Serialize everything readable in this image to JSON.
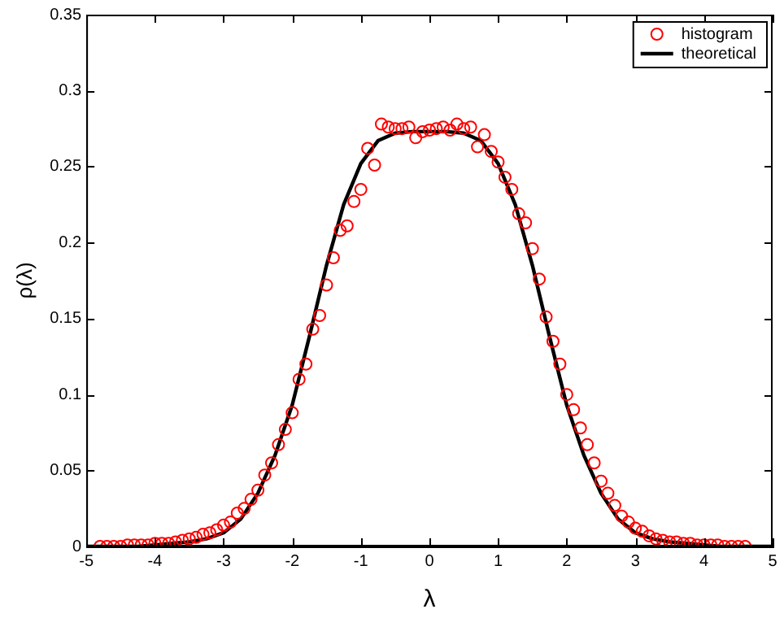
{
  "chart_data": {
    "type": "scatter",
    "xlabel": "λ",
    "ylabel": "ρ(λ)",
    "xlim": [
      -5,
      5
    ],
    "xticks": [
      -5,
      -4,
      -3,
      -2,
      -1,
      0,
      1,
      2,
      3,
      4,
      5
    ],
    "ylim": [
      0,
      0.35
    ],
    "yticks": [
      0,
      0.05,
      0.1,
      0.15,
      0.2,
      0.25,
      0.3,
      0.35
    ],
    "grid": false,
    "legend": "top right",
    "series": [
      {
        "name": "histogram",
        "marker": "circle",
        "color": "#ff0000",
        "x": [
          -4.8,
          -4.7,
          -4.6,
          -4.5,
          -4.4,
          -4.3,
          -4.2,
          -4.1,
          -4.0,
          -3.9,
          -3.8,
          -3.7,
          -3.6,
          -3.5,
          -3.4,
          -3.3,
          -3.2,
          -3.1,
          -3.0,
          -2.9,
          -2.8,
          -2.7,
          -2.6,
          -2.5,
          -2.4,
          -2.3,
          -2.2,
          -2.1,
          -2.0,
          -1.9,
          -1.8,
          -1.7,
          -1.6,
          -1.5,
          -1.4,
          -1.3,
          -1.2,
          -1.1,
          -1.0,
          -0.9,
          -0.8,
          -0.7,
          -0.6,
          -0.5,
          -0.4,
          -0.3,
          -0.2,
          -0.1,
          0,
          0.1,
          0.2,
          0.3,
          0.4,
          0.5,
          0.6,
          0.7,
          0.8,
          0.9,
          1.0,
          1.1,
          1.2,
          1.3,
          1.4,
          1.5,
          1.6,
          1.7,
          1.8,
          1.9,
          2.0,
          2.1,
          2.2,
          2.3,
          2.4,
          2.5,
          2.6,
          2.7,
          2.8,
          2.9,
          3.0,
          3.1,
          3.2,
          3.3,
          3.4,
          3.5,
          3.6,
          3.7,
          3.8,
          3.9,
          4.0,
          4.1,
          4.2,
          4.3,
          4.4,
          4.5,
          4.6
        ],
        "values": [
          0,
          0,
          0,
          0,
          0.001,
          0.001,
          0.001,
          0.001,
          0.002,
          0.002,
          0.002,
          0.003,
          0.004,
          0.005,
          0.006,
          0.008,
          0.009,
          0.011,
          0.014,
          0.016,
          0.022,
          0.025,
          0.031,
          0.037,
          0.047,
          0.055,
          0.067,
          0.077,
          0.088,
          0.11,
          0.12,
          0.143,
          0.152,
          0.172,
          0.19,
          0.208,
          0.211,
          0.227,
          0.235,
          0.262,
          0.251,
          0.278,
          0.276,
          0.275,
          0.275,
          0.276,
          0.269,
          0.273,
          0.274,
          0.275,
          0.276,
          0.274,
          0.278,
          0.275,
          0.276,
          0.263,
          0.271,
          0.26,
          0.253,
          0.243,
          0.235,
          0.219,
          0.213,
          0.196,
          0.176,
          0.151,
          0.135,
          0.12,
          0.1,
          0.09,
          0.078,
          0.067,
          0.055,
          0.043,
          0.035,
          0.027,
          0.02,
          0.016,
          0.012,
          0.01,
          0.007,
          0.005,
          0.004,
          0.003,
          0.003,
          0.002,
          0.002,
          0.001,
          0.001,
          0.001,
          0.001,
          0,
          0,
          0,
          0
        ]
      },
      {
        "name": "theoretical",
        "type": "line",
        "marker": "none",
        "line_style": "solid",
        "color": "#000000",
        "x": [
          -5,
          -4.75,
          -4.5,
          -4.25,
          -4,
          -3.75,
          -3.5,
          -3.25,
          -3,
          -2.75,
          -2.5,
          -2.25,
          -2,
          -1.75,
          -1.5,
          -1.25,
          -1,
          -0.75,
          -0.5,
          -0.25,
          0,
          0.25,
          0.5,
          0.75,
          1,
          1.25,
          1.5,
          1.75,
          2,
          2.25,
          2.5,
          2.75,
          3,
          3.25,
          3.5,
          3.75,
          4,
          4.25,
          4.5,
          4.75,
          5
        ],
        "values": [
          0,
          0,
          0,
          0,
          0.001,
          0.002,
          0.003,
          0.005,
          0.009,
          0.018,
          0.035,
          0.06,
          0.093,
          0.138,
          0.185,
          0.225,
          0.252,
          0.267,
          0.272,
          0.273,
          0.273,
          0.273,
          0.272,
          0.267,
          0.252,
          0.225,
          0.185,
          0.138,
          0.093,
          0.06,
          0.035,
          0.018,
          0.009,
          0.005,
          0.003,
          0.002,
          0.001,
          0,
          0,
          0,
          0
        ]
      }
    ]
  }
}
